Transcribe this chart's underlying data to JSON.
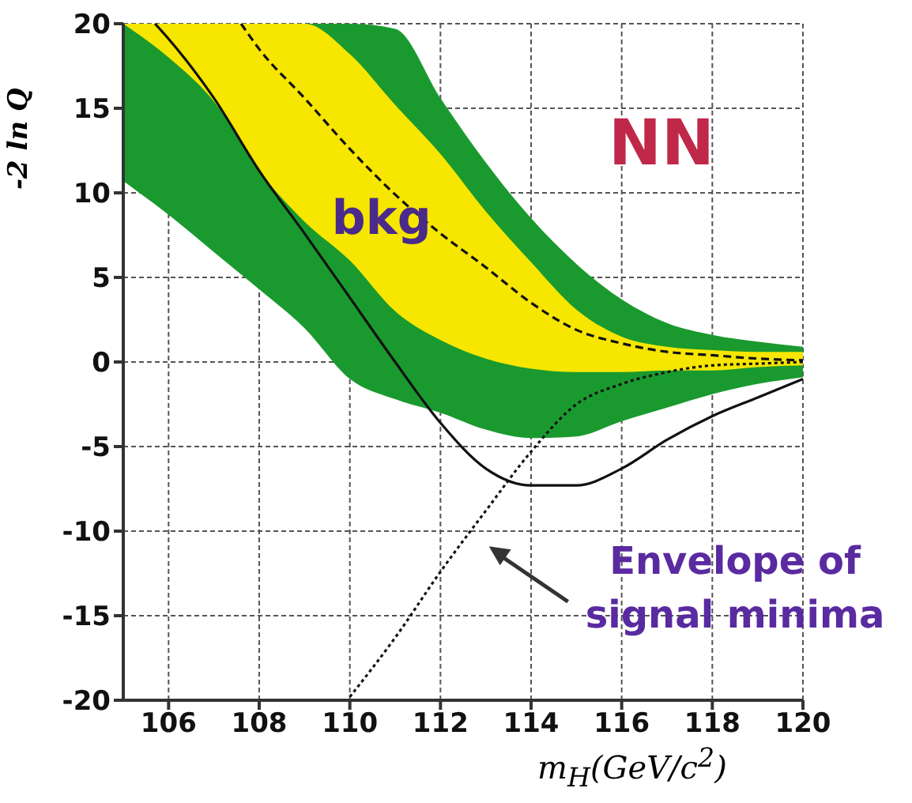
{
  "chart_data": {
    "type": "line",
    "xlabel": "m$_{H}$(GeV/c$^{2}$)",
    "ylabel": "-2 ln Q",
    "xlim": [
      105,
      120
    ],
    "xticks": [
      106,
      108,
      110,
      112,
      114,
      116,
      118,
      120
    ],
    "ylim": [
      -20,
      20
    ],
    "yticks": [
      -20,
      -15,
      -10,
      -5,
      0,
      5,
      10,
      15,
      20
    ],
    "grid": true,
    "legend": false,
    "marker": "none",
    "annotations": [
      "NN",
      "bkg",
      "Envelope of signal minima"
    ],
    "series": [
      {
        "type": "line",
        "color": "#1a9a2e",
        "x": [
          105,
          106,
          107,
          108,
          109,
          110,
          111,
          112,
          113,
          114,
          115,
          116,
          117,
          118,
          119,
          120
        ],
        "values": [
          null,
          null,
          null,
          null,
          null,
          null,
          null,
          null,
          null,
          null,
          null,
          null,
          null,
          null,
          null,
          null
        ],
        "lower": [
          10.7,
          8.7,
          6.5,
          4.3,
          2.0,
          -1.0,
          -2.2,
          -3.0,
          -4.0,
          -4.5,
          -4.4,
          -3.5,
          -2.7,
          -1.9,
          -1.3,
          -0.9
        ],
        "upper": [
          20,
          20,
          20,
          20,
          20,
          20,
          19.7,
          15.6,
          11.8,
          8.5,
          5.8,
          3.7,
          2.3,
          1.6,
          1.2,
          0.9
        ]
      },
      {
        "type": "line",
        "color": "#f6e600",
        "x": [
          105,
          106,
          107,
          108,
          109,
          110,
          111,
          112,
          113,
          114,
          115,
          116,
          117,
          118,
          119,
          120
        ],
        "values": [
          null,
          null,
          null,
          null,
          null,
          null,
          null,
          null,
          null,
          null,
          null,
          null,
          null,
          null,
          null,
          null
        ],
        "lower": [
          20,
          18,
          15.4,
          11.3,
          8.3,
          6.0,
          3.0,
          1.3,
          0.2,
          -0.4,
          -0.6,
          -0.6,
          -0.5,
          -0.5,
          -0.3,
          -0.2
        ],
        "upper": [
          20,
          20,
          20,
          20,
          20,
          18.2,
          15.2,
          12.3,
          8.9,
          5.9,
          3.1,
          1.5,
          0.9,
          0.7,
          0.6,
          0.6
        ]
      },
      {
        "color": "#111111",
        "line_style": "dashed",
        "x": [
          107.6,
          108,
          109,
          110,
          111,
          112,
          113,
          114,
          115,
          116,
          117,
          118,
          119,
          120
        ],
        "values": [
          20,
          18.5,
          15.6,
          12.6,
          9.9,
          7.6,
          5.6,
          3.5,
          1.9,
          1.1,
          0.6,
          0.4,
          0.2,
          0.1
        ]
      },
      {
        "color": "#111111",
        "line_style": "solid",
        "x": [
          105.7,
          106,
          107,
          108,
          109,
          110,
          111,
          112,
          113,
          114,
          115,
          116,
          117,
          118,
          119,
          120
        ],
        "values": [
          20,
          19.1,
          15.6,
          11.3,
          7.6,
          3.8,
          0,
          -3.6,
          -6.3,
          -7.3,
          -7.3,
          -6.3,
          -4.6,
          -3.2,
          -2.1,
          -1.0
        ]
      },
      {
        "color": "#111111",
        "line_style": "dotted",
        "x": [
          110,
          111,
          112,
          113,
          114,
          115,
          116,
          117,
          118,
          119,
          120
        ],
        "values": [
          -19.8,
          -16.3,
          -12.4,
          -8.8,
          -5.3,
          -2.5,
          -1.3,
          -0.6,
          -0.2,
          -0.1,
          0
        ]
      }
    ]
  }
}
